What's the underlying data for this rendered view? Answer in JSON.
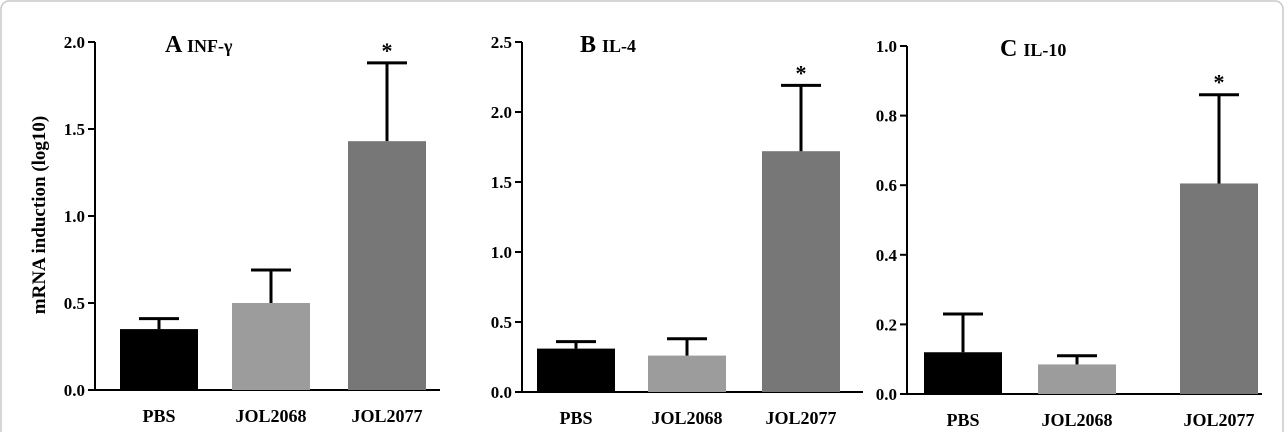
{
  "colors": {
    "PBS": "#000000",
    "JOL2068": "#9c9c9c",
    "JOL2077": "#777777",
    "axis": "#000000",
    "frame": "#c8c8c8"
  },
  "shared_ylabel": "mRNA induction (log10)",
  "chart_data": [
    {
      "type": "bar",
      "panel": "A",
      "title_letter": "A",
      "title_cytokine": "INF-γ",
      "categories": [
        "PBS",
        "JOL2068",
        "JOL2077"
      ],
      "values": [
        0.35,
        0.5,
        1.43
      ],
      "errors": [
        0.06,
        0.19,
        0.45
      ],
      "significance": [
        "",
        "",
        "*"
      ],
      "ylim": [
        0.0,
        2.0
      ],
      "yticks": [
        0.0,
        0.5,
        1.0,
        1.5,
        2.0
      ],
      "ytick_labels": [
        "0.0",
        "0.5",
        "1.0",
        "1.5",
        "2.0"
      ],
      "ylabel": "mRNA induction (log10)",
      "xlabel": ""
    },
    {
      "type": "bar",
      "panel": "B",
      "title_letter": "B",
      "title_cytokine": "IL-4",
      "categories": [
        "PBS",
        "JOL2068",
        "JOL2077"
      ],
      "values": [
        0.31,
        0.26,
        1.72
      ],
      "errors": [
        0.05,
        0.12,
        0.47
      ],
      "significance": [
        "",
        "",
        "*"
      ],
      "ylim": [
        0.0,
        2.5
      ],
      "yticks": [
        0.0,
        0.5,
        1.0,
        1.5,
        2.0,
        2.5
      ],
      "ytick_labels": [
        "0.0",
        "0.5",
        "1.0",
        "1.5",
        "2.0",
        "2.5"
      ],
      "ylabel": "",
      "xlabel": ""
    },
    {
      "type": "bar",
      "panel": "C",
      "title_letter": "C",
      "title_cytokine": "IL-10",
      "categories": [
        "PBS",
        "JOL2068",
        "JOL2077"
      ],
      "values": [
        0.12,
        0.085,
        0.605
      ],
      "errors": [
        0.11,
        0.025,
        0.255
      ],
      "significance": [
        "",
        "",
        "*"
      ],
      "ylim": [
        0.0,
        1.0
      ],
      "yticks": [
        0.0,
        0.2,
        0.4,
        0.6,
        0.8,
        1.0
      ],
      "ytick_labels": [
        "0.0",
        "0.2",
        "0.4",
        "0.6",
        "0.8",
        "1.0"
      ],
      "ylabel": "",
      "xlabel": ""
    }
  ]
}
